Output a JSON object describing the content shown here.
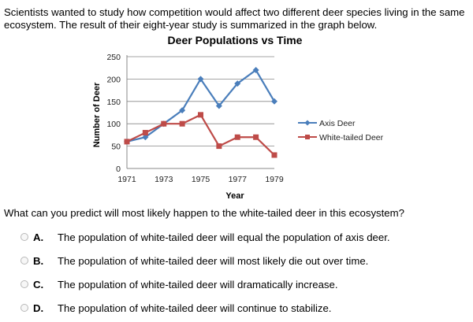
{
  "intro": "Scientists wanted to study how competition would affect two different deer species living in the same ecosystem. The result of their eight-year study is summarized in the graph below.",
  "question": "What can you predict will most likely happen to the white-tailed deer in this ecosystem?",
  "choices": [
    {
      "letter": "A.",
      "text": "The population of white-tailed deer will equal the population of axis deer."
    },
    {
      "letter": "B.",
      "text": "The population of white-tailed deer will most likely die out over time."
    },
    {
      "letter": "C.",
      "text": "The population of white-tailed deer will dramatically increase."
    },
    {
      "letter": "D.",
      "text": "The population of white-tailed deer will continue to stabilize."
    }
  ],
  "chart_data": {
    "type": "line",
    "title": "Deer Populations vs Time",
    "xlabel": "Year",
    "ylabel": "Number of Deer",
    "x": [
      1971,
      1972,
      1973,
      1974,
      1975,
      1976,
      1977,
      1978,
      1979
    ],
    "x_tick_labels": [
      "1971",
      "1973",
      "1975",
      "1977",
      "1979"
    ],
    "y_ticks": [
      0,
      50,
      100,
      150,
      200,
      250
    ],
    "ylim": [
      0,
      250
    ],
    "grid": "horizontal",
    "legend_position": "right",
    "series": [
      {
        "name": "Axis Deer",
        "color": "#4a7ebb",
        "marker": "diamond",
        "values": [
          60,
          70,
          100,
          130,
          200,
          140,
          190,
          220,
          150
        ]
      },
      {
        "name": "White-tailed Deer",
        "color": "#be4b48",
        "marker": "square",
        "values": [
          60,
          80,
          100,
          100,
          120,
          50,
          70,
          70,
          30
        ]
      }
    ]
  }
}
